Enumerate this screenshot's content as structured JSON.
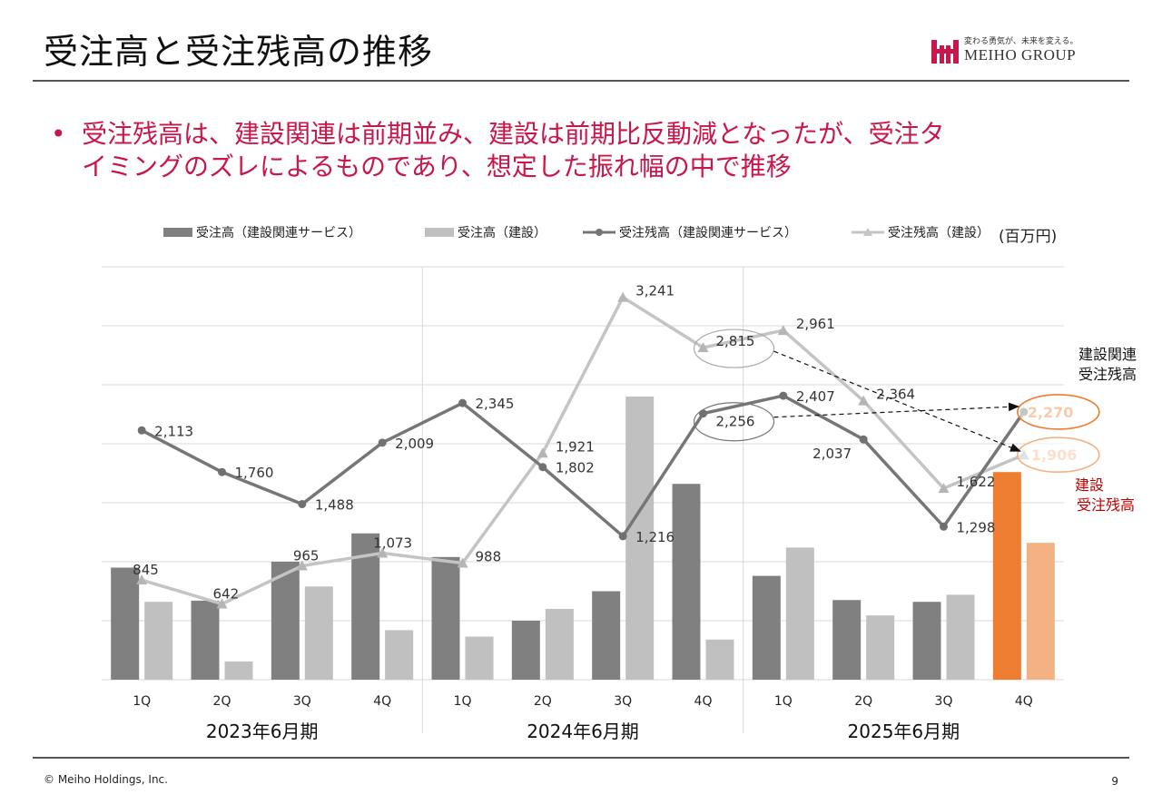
{
  "header": {
    "title": "受注高と受注残高の推移",
    "logo_tagline": "変わる勇気が、未来を変える。",
    "logo_name": "MEIHO GROUP"
  },
  "bullet": {
    "line1": "受注残高は、建設関連は前期並み、建設は前期比反動減となったが、受注タ",
    "line2": "イミングのズレによるものであり、想定した振れ幅の中で推移"
  },
  "legend": {
    "items": [
      "受注高（建設関連サービス）",
      "受注高（建設）",
      "受注残高（建設関連サービス）",
      "受注残高（建設）"
    ],
    "unit": "(百万円)"
  },
  "annotations": {
    "kensetsu_kanren_line1": "建設関連",
    "kensetsu_kanren_line2": "受注残高",
    "kensetsu_line1": "建設",
    "kensetsu_line2": "受注残高"
  },
  "footer": {
    "copyright": "© Meiho Holdings, Inc.",
    "page": "9"
  },
  "chart_data": {
    "type": "bar",
    "quarters": [
      "1Q",
      "2Q",
      "3Q",
      "4Q",
      "1Q",
      "2Q",
      "3Q",
      "4Q",
      "1Q",
      "2Q",
      "3Q",
      "4Q"
    ],
    "periods": [
      "2023年6月期",
      "2024年6月期",
      "2025年6月期"
    ],
    "ylim": [
      0,
      3500
    ],
    "grid": true,
    "series": [
      {
        "name": "受注高（建設関連サービス）",
        "kind": "bar",
        "color": "#808080",
        "values": [
          950,
          670,
          1000,
          1240,
          1040,
          500,
          750,
          1660,
          880,
          675,
          660,
          1760
        ]
      },
      {
        "name": "受注高（建設）",
        "kind": "bar",
        "color": "#c0c0c0",
        "values": [
          660,
          155,
          790,
          420,
          365,
          600,
          2400,
          340,
          1120,
          545,
          720,
          1160
        ]
      },
      {
        "name": "受注残高（建設関連サービス）",
        "kind": "line",
        "color": "#767676",
        "values": [
          2113,
          1760,
          1488,
          2009,
          2345,
          1802,
          1216,
          2256,
          2407,
          2037,
          1298,
          2270
        ],
        "labels": [
          "2,113",
          "1,760",
          "1,488",
          "2,009",
          "2,345",
          "1,802",
          "1,216",
          "2,256",
          "2,407",
          "2,037",
          "1,298",
          "2,270"
        ]
      },
      {
        "name": "受注残高（建設）",
        "kind": "line",
        "color": "#c4c4c4",
        "values": [
          845,
          642,
          965,
          1073,
          988,
          1921,
          3241,
          2815,
          2961,
          2364,
          1622,
          1906
        ],
        "labels": [
          "845",
          "642",
          "965",
          "1,073",
          "988",
          "1,921",
          "3,241",
          "2,815",
          "2,961",
          "2,364",
          "1,622",
          "1,906"
        ]
      }
    ],
    "highlight_colors": {
      "bar_kanren": "#ed7d31",
      "bar_kensetsu": "#f4b183",
      "label_kanren": "#ed7d31",
      "label_kensetsu": "#f4b183",
      "annotation_red": "#c00000"
    }
  }
}
